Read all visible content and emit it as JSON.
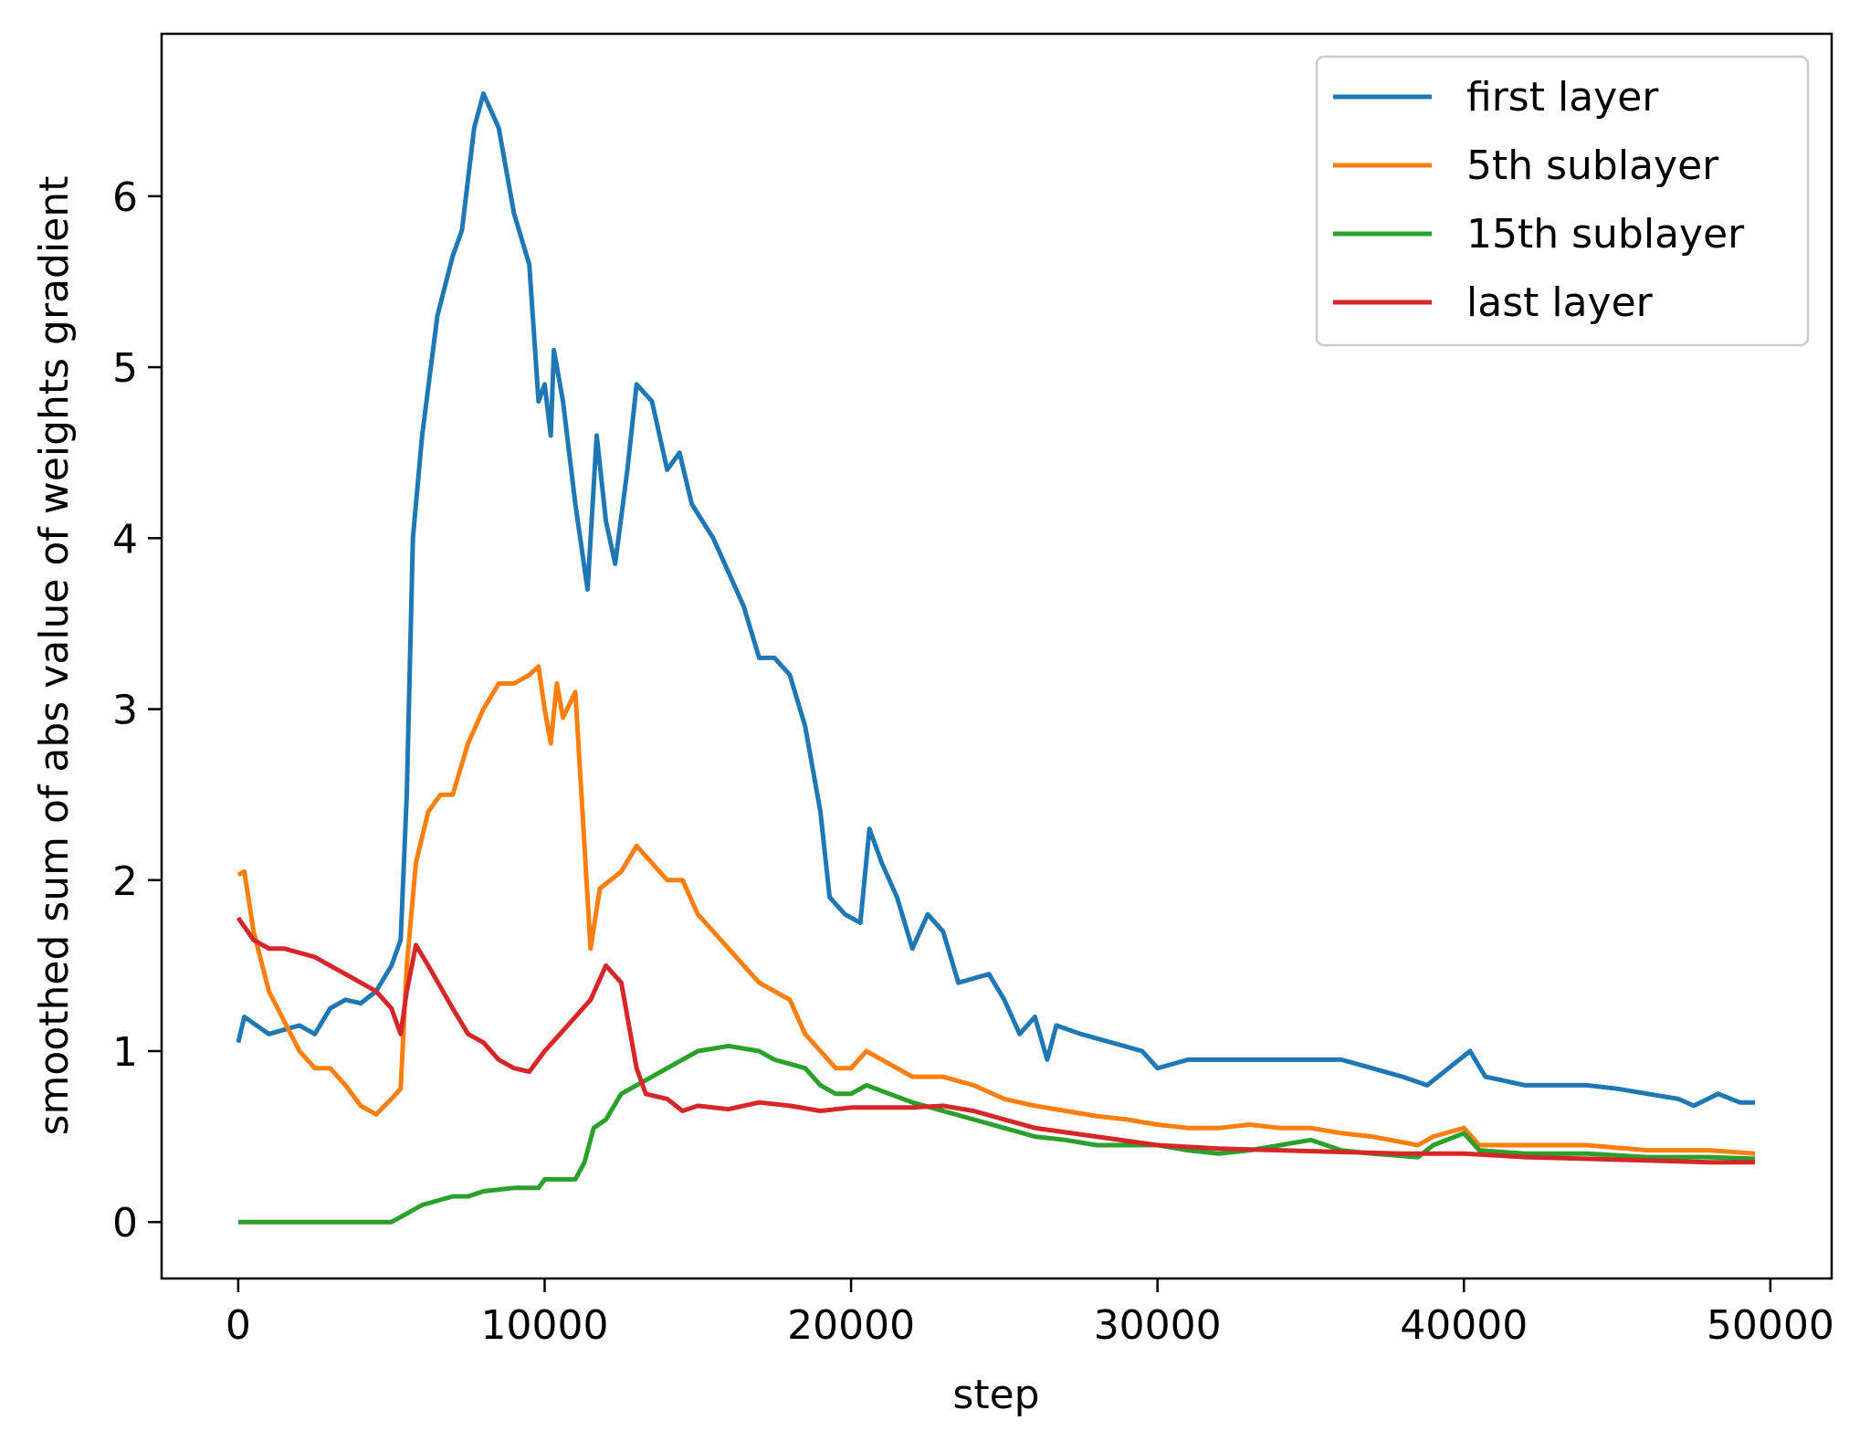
{
  "chart_data": {
    "type": "line",
    "title": "",
    "xlabel": "step",
    "ylabel": "smoothed sum of abs value of weights gradient",
    "xlim": [
      -2500,
      52000
    ],
    "ylim": [
      -0.33,
      6.95
    ],
    "xticks": [
      0,
      10000,
      20000,
      30000,
      40000,
      50000
    ],
    "xtick_labels": [
      "0",
      "10000",
      "20000",
      "30000",
      "40000",
      "50000"
    ],
    "yticks": [
      0,
      1,
      2,
      3,
      4,
      5,
      6
    ],
    "ytick_labels": [
      "0",
      "1",
      "2",
      "3",
      "4",
      "5",
      "6"
    ],
    "grid": false,
    "legend_position": "top-right",
    "series": [
      {
        "name": "first layer",
        "color": "#1f77b4",
        "points": [
          [
            0,
            1.05
          ],
          [
            200,
            1.2
          ],
          [
            1000,
            1.1
          ],
          [
            2000,
            1.15
          ],
          [
            2500,
            1.1
          ],
          [
            3000,
            1.25
          ],
          [
            3500,
            1.3
          ],
          [
            4000,
            1.28
          ],
          [
            4500,
            1.35
          ],
          [
            5000,
            1.5
          ],
          [
            5300,
            1.65
          ],
          [
            5500,
            2.5
          ],
          [
            5700,
            4.0
          ],
          [
            6000,
            4.6
          ],
          [
            6500,
            5.3
          ],
          [
            7000,
            5.65
          ],
          [
            7300,
            5.8
          ],
          [
            7700,
            6.4
          ],
          [
            8000,
            6.6
          ],
          [
            8500,
            6.4
          ],
          [
            9000,
            5.9
          ],
          [
            9500,
            5.6
          ],
          [
            9800,
            4.8
          ],
          [
            10000,
            4.9
          ],
          [
            10200,
            4.6
          ],
          [
            10300,
            5.1
          ],
          [
            10600,
            4.8
          ],
          [
            11000,
            4.2
          ],
          [
            11400,
            3.7
          ],
          [
            11700,
            4.6
          ],
          [
            12000,
            4.1
          ],
          [
            12300,
            3.85
          ],
          [
            12700,
            4.4
          ],
          [
            13000,
            4.9
          ],
          [
            13500,
            4.8
          ],
          [
            14000,
            4.4
          ],
          [
            14400,
            4.5
          ],
          [
            14800,
            4.2
          ],
          [
            15500,
            4.0
          ],
          [
            16000,
            3.8
          ],
          [
            16500,
            3.6
          ],
          [
            17000,
            3.3
          ],
          [
            17500,
            3.3
          ],
          [
            18000,
            3.2
          ],
          [
            18500,
            2.9
          ],
          [
            19000,
            2.4
          ],
          [
            19300,
            1.9
          ],
          [
            19800,
            1.8
          ],
          [
            20300,
            1.75
          ],
          [
            20600,
            2.3
          ],
          [
            21000,
            2.1
          ],
          [
            21500,
            1.9
          ],
          [
            22000,
            1.6
          ],
          [
            22500,
            1.8
          ],
          [
            23000,
            1.7
          ],
          [
            23500,
            1.4
          ],
          [
            24500,
            1.45
          ],
          [
            25000,
            1.3
          ],
          [
            25500,
            1.1
          ],
          [
            26000,
            1.2
          ],
          [
            26400,
            0.95
          ],
          [
            26700,
            1.15
          ],
          [
            27500,
            1.1
          ],
          [
            28500,
            1.05
          ],
          [
            29500,
            1.0
          ],
          [
            30000,
            0.9
          ],
          [
            31000,
            0.95
          ],
          [
            32000,
            0.95
          ],
          [
            33000,
            0.95
          ],
          [
            34000,
            0.95
          ],
          [
            35000,
            0.95
          ],
          [
            36000,
            0.95
          ],
          [
            37000,
            0.9
          ],
          [
            38000,
            0.85
          ],
          [
            38800,
            0.8
          ],
          [
            39500,
            0.9
          ],
          [
            40200,
            1.0
          ],
          [
            40700,
            0.85
          ],
          [
            42000,
            0.8
          ],
          [
            43000,
            0.8
          ],
          [
            44000,
            0.8
          ],
          [
            45000,
            0.78
          ],
          [
            46000,
            0.75
          ],
          [
            47000,
            0.72
          ],
          [
            47500,
            0.68
          ],
          [
            48300,
            0.75
          ],
          [
            49000,
            0.7
          ],
          [
            49500,
            0.7
          ]
        ]
      },
      {
        "name": "5th sublayer",
        "color": "#ff7f0e",
        "points": [
          [
            0,
            2.03
          ],
          [
            200,
            2.05
          ],
          [
            500,
            1.7
          ],
          [
            1000,
            1.35
          ],
          [
            2000,
            1.0
          ],
          [
            2500,
            0.9
          ],
          [
            3000,
            0.9
          ],
          [
            3500,
            0.8
          ],
          [
            4000,
            0.68
          ],
          [
            4500,
            0.63
          ],
          [
            5000,
            0.72
          ],
          [
            5300,
            0.78
          ],
          [
            5500,
            1.5
          ],
          [
            5800,
            2.1
          ],
          [
            6200,
            2.4
          ],
          [
            6600,
            2.5
          ],
          [
            7000,
            2.5
          ],
          [
            7500,
            2.8
          ],
          [
            8000,
            3.0
          ],
          [
            8500,
            3.15
          ],
          [
            9000,
            3.15
          ],
          [
            9500,
            3.2
          ],
          [
            9800,
            3.25
          ],
          [
            10000,
            3.0
          ],
          [
            10200,
            2.8
          ],
          [
            10400,
            3.15
          ],
          [
            10600,
            2.95
          ],
          [
            11000,
            3.1
          ],
          [
            11200,
            2.5
          ],
          [
            11500,
            1.6
          ],
          [
            11800,
            1.95
          ],
          [
            12500,
            2.05
          ],
          [
            13000,
            2.2
          ],
          [
            13500,
            2.1
          ],
          [
            14000,
            2.0
          ],
          [
            14500,
            2.0
          ],
          [
            15000,
            1.8
          ],
          [
            16000,
            1.6
          ],
          [
            16500,
            1.5
          ],
          [
            17000,
            1.4
          ],
          [
            18000,
            1.3
          ],
          [
            18500,
            1.1
          ],
          [
            19000,
            1.0
          ],
          [
            19500,
            0.9
          ],
          [
            20000,
            0.9
          ],
          [
            20500,
            1.0
          ],
          [
            21000,
            0.95
          ],
          [
            22000,
            0.85
          ],
          [
            22500,
            0.85
          ],
          [
            23000,
            0.85
          ],
          [
            24000,
            0.8
          ],
          [
            25000,
            0.72
          ],
          [
            26000,
            0.68
          ],
          [
            27000,
            0.65
          ],
          [
            28000,
            0.62
          ],
          [
            29000,
            0.6
          ],
          [
            30000,
            0.57
          ],
          [
            31000,
            0.55
          ],
          [
            32000,
            0.55
          ],
          [
            33000,
            0.57
          ],
          [
            34000,
            0.55
          ],
          [
            35000,
            0.55
          ],
          [
            36000,
            0.52
          ],
          [
            37000,
            0.5
          ],
          [
            38500,
            0.45
          ],
          [
            39000,
            0.5
          ],
          [
            40000,
            0.55
          ],
          [
            40500,
            0.45
          ],
          [
            42000,
            0.45
          ],
          [
            44000,
            0.45
          ],
          [
            46000,
            0.42
          ],
          [
            48000,
            0.42
          ],
          [
            49500,
            0.4
          ]
        ]
      },
      {
        "name": "15th sublayer",
        "color": "#2ca02c",
        "points": [
          [
            0,
            0
          ],
          [
            5000,
            0
          ],
          [
            5500,
            0.05
          ],
          [
            6000,
            0.1
          ],
          [
            7000,
            0.15
          ],
          [
            7500,
            0.15
          ],
          [
            8000,
            0.18
          ],
          [
            9000,
            0.2
          ],
          [
            9800,
            0.2
          ],
          [
            10000,
            0.25
          ],
          [
            11000,
            0.25
          ],
          [
            11300,
            0.35
          ],
          [
            11600,
            0.55
          ],
          [
            12000,
            0.6
          ],
          [
            12500,
            0.75
          ],
          [
            13000,
            0.8
          ],
          [
            14000,
            0.9
          ],
          [
            15000,
            1.0
          ],
          [
            16000,
            1.03
          ],
          [
            17000,
            1.0
          ],
          [
            17500,
            0.95
          ],
          [
            18500,
            0.9
          ],
          [
            19000,
            0.8
          ],
          [
            19500,
            0.75
          ],
          [
            20000,
            0.75
          ],
          [
            20500,
            0.8
          ],
          [
            22000,
            0.7
          ],
          [
            23000,
            0.65
          ],
          [
            24000,
            0.6
          ],
          [
            25000,
            0.55
          ],
          [
            26000,
            0.5
          ],
          [
            27000,
            0.48
          ],
          [
            28000,
            0.45
          ],
          [
            29000,
            0.45
          ],
          [
            30000,
            0.45
          ],
          [
            31000,
            0.42
          ],
          [
            32000,
            0.4
          ],
          [
            33000,
            0.42
          ],
          [
            34000,
            0.45
          ],
          [
            35000,
            0.48
          ],
          [
            36000,
            0.42
          ],
          [
            37000,
            0.4
          ],
          [
            38500,
            0.38
          ],
          [
            39000,
            0.45
          ],
          [
            40000,
            0.52
          ],
          [
            40500,
            0.42
          ],
          [
            42000,
            0.4
          ],
          [
            44000,
            0.4
          ],
          [
            46000,
            0.38
          ],
          [
            48000,
            0.38
          ],
          [
            49500,
            0.37
          ]
        ]
      },
      {
        "name": "last layer",
        "color": "#d62728",
        "points": [
          [
            0,
            1.78
          ],
          [
            500,
            1.65
          ],
          [
            1000,
            1.6
          ],
          [
            1500,
            1.6
          ],
          [
            2500,
            1.55
          ],
          [
            3000,
            1.5
          ],
          [
            3500,
            1.45
          ],
          [
            4000,
            1.4
          ],
          [
            4500,
            1.35
          ],
          [
            5000,
            1.25
          ],
          [
            5300,
            1.1
          ],
          [
            5500,
            1.35
          ],
          [
            5800,
            1.62
          ],
          [
            6200,
            1.5
          ],
          [
            7000,
            1.25
          ],
          [
            7500,
            1.1
          ],
          [
            8000,
            1.05
          ],
          [
            8500,
            0.95
          ],
          [
            9000,
            0.9
          ],
          [
            9500,
            0.88
          ],
          [
            10000,
            1.0
          ],
          [
            10500,
            1.1
          ],
          [
            11000,
            1.2
          ],
          [
            11500,
            1.3
          ],
          [
            12000,
            1.5
          ],
          [
            12500,
            1.4
          ],
          [
            13000,
            0.9
          ],
          [
            13300,
            0.75
          ],
          [
            14000,
            0.72
          ],
          [
            14500,
            0.65
          ],
          [
            15000,
            0.68
          ],
          [
            16000,
            0.66
          ],
          [
            17000,
            0.7
          ],
          [
            18000,
            0.68
          ],
          [
            19000,
            0.65
          ],
          [
            20000,
            0.67
          ],
          [
            22000,
            0.67
          ],
          [
            23000,
            0.68
          ],
          [
            24000,
            0.65
          ],
          [
            25000,
            0.6
          ],
          [
            26000,
            0.55
          ],
          [
            28000,
            0.5
          ],
          [
            30000,
            0.45
          ],
          [
            32000,
            0.43
          ],
          [
            34000,
            0.42
          ],
          [
            36000,
            0.41
          ],
          [
            38000,
            0.4
          ],
          [
            40000,
            0.4
          ],
          [
            42000,
            0.38
          ],
          [
            44000,
            0.37
          ],
          [
            46000,
            0.36
          ],
          [
            48000,
            0.35
          ],
          [
            49500,
            0.35
          ]
        ]
      }
    ]
  }
}
